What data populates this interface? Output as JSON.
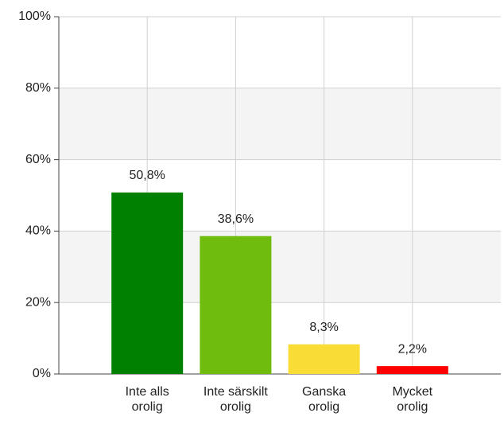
{
  "chart_data": {
    "type": "bar",
    "categories": [
      "Inte alls orolig",
      "Inte särskilt orolig",
      "Ganska orolig",
      "Mycket orolig"
    ],
    "values": [
      50.8,
      38.6,
      8.3,
      2.2
    ],
    "value_labels": [
      "50,8%",
      "38,6%",
      "8,3%",
      "2,2%"
    ],
    "colors": [
      "#008000",
      "#70bc0e",
      "#f9dc35",
      "#ff0000"
    ],
    "ylim": [
      0,
      100
    ],
    "yticks": [
      {
        "value": 0,
        "label": "0%"
      },
      {
        "value": 20,
        "label": "20%"
      },
      {
        "value": 40,
        "label": "40%"
      },
      {
        "value": 60,
        "label": "60%"
      },
      {
        "value": 80,
        "label": "80%"
      },
      {
        "value": 100,
        "label": "100%"
      }
    ],
    "grid": true
  }
}
